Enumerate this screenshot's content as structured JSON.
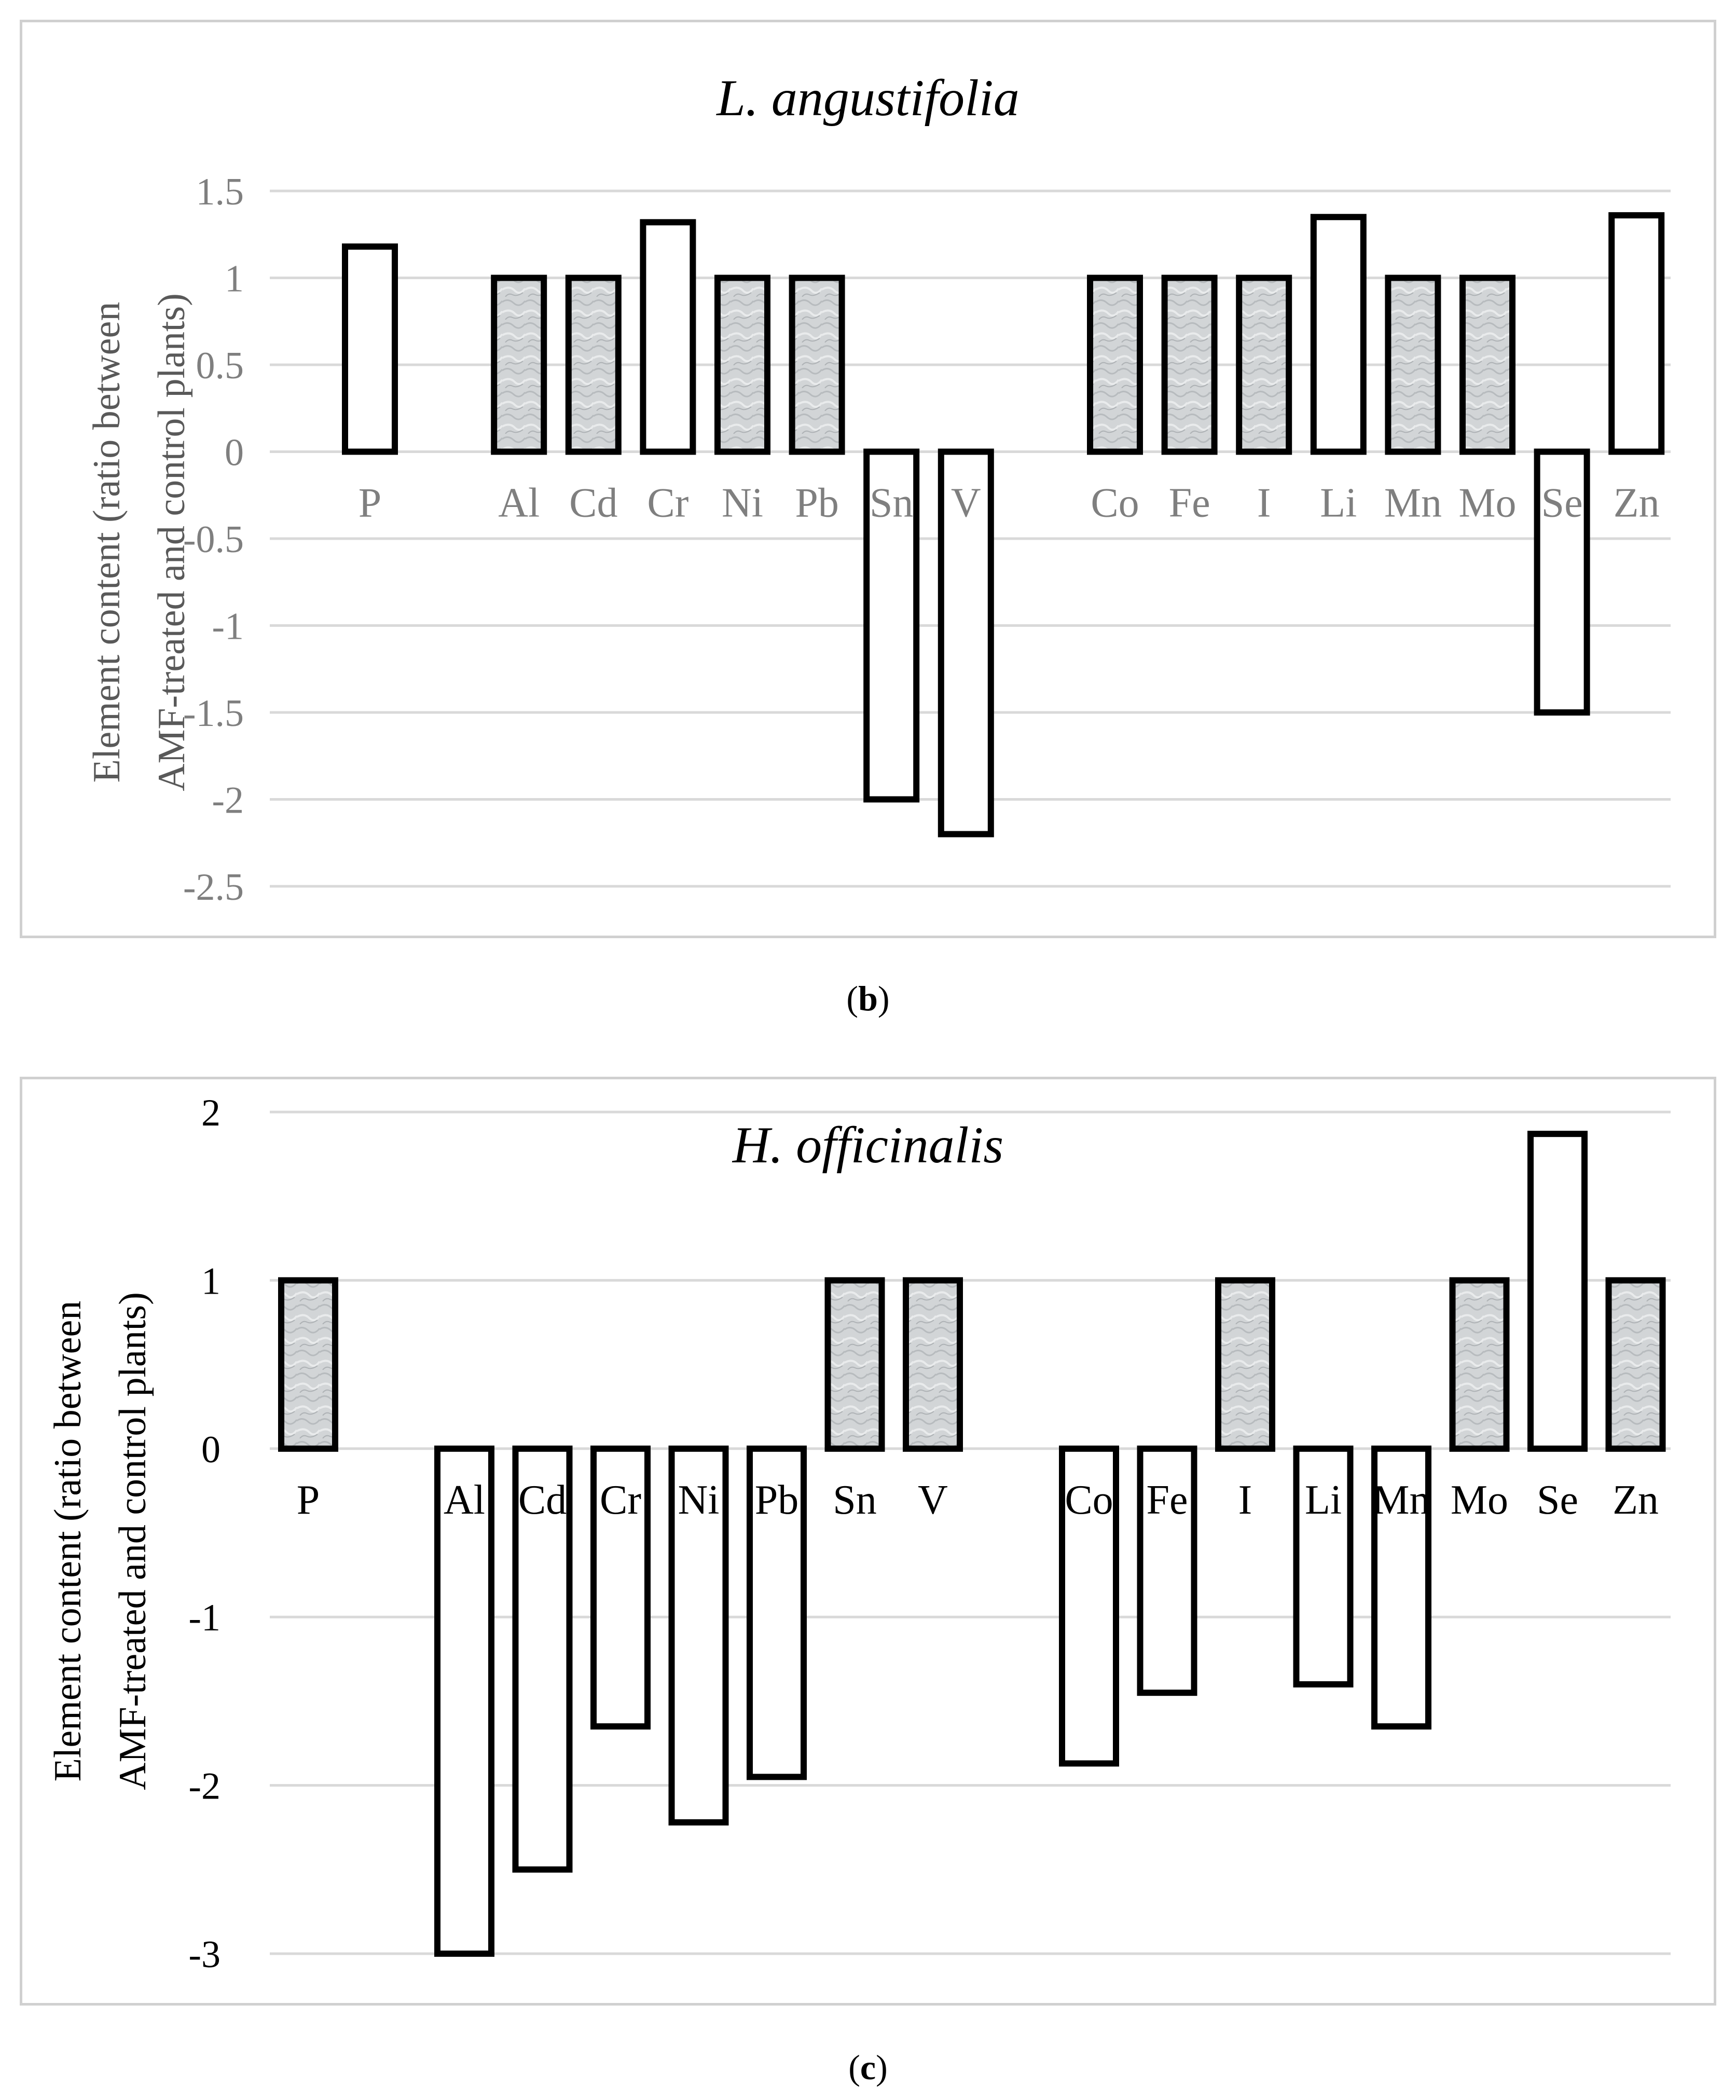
{
  "colors": {
    "gridline": "#d9d9d9",
    "bar_stroke": "#000000",
    "pattern_fill": "#cfd2d4",
    "tick_b": "#7f7f7f",
    "tick_c": "#000000"
  },
  "chart_data": [
    {
      "type": "bar",
      "panel": "b",
      "title": "L. angustifolia",
      "caption_letter": "b",
      "ylabel_line1": "Element content (ratio between",
      "ylabel_line2": "AMF-treated and control plants)",
      "xlabel": "",
      "ylim": [
        -2.5,
        1.5
      ],
      "yticks": [
        1.5,
        1,
        0.5,
        0,
        -0.5,
        -1,
        -1.5,
        -2,
        -2.5
      ],
      "ytick_labels": [
        "1.5",
        "1",
        "0.5",
        "0",
        "-0.5",
        "-1",
        "-1.5",
        "-2",
        "-2.5"
      ],
      "categories": [
        "P",
        "",
        "Al",
        "Cd",
        "Cr",
        "Ni",
        "Pb",
        "Sn",
        "V",
        "",
        "Co",
        "Fe",
        "I",
        "Li",
        "Mn",
        "Mo",
        "Se",
        "Zn"
      ],
      "values": [
        1.18,
        null,
        1,
        1,
        1.32,
        1,
        1,
        -2,
        -2.2,
        null,
        1,
        1,
        1,
        1.35,
        1,
        1,
        -1.5,
        1.36
      ],
      "patterned": [
        false,
        false,
        true,
        true,
        false,
        true,
        true,
        false,
        false,
        false,
        true,
        true,
        true,
        false,
        true,
        true,
        false,
        false
      ]
    },
    {
      "type": "bar",
      "panel": "c",
      "title": "H. officinalis",
      "caption_letter": "c",
      "ylabel_line1": "Element content (ratio between",
      "ylabel_line2": "AMF-treated and control plants)",
      "xlabel": "",
      "ylim": [
        -3,
        2
      ],
      "yticks": [
        2,
        1,
        0,
        -1,
        -2,
        -3
      ],
      "ytick_labels": [
        "2",
        "1",
        "0",
        "-1",
        "-2",
        "-3"
      ],
      "categories": [
        "P",
        "",
        "Al",
        "Cd",
        "Cr",
        "Ni",
        "Pb",
        "Sn",
        "V",
        "",
        "Co",
        "Fe",
        "I",
        "Li",
        "Mn",
        "Mo",
        "Se",
        "Zn"
      ],
      "values": [
        1,
        null,
        -3,
        -2.5,
        -1.65,
        -2.22,
        -1.95,
        1,
        1,
        null,
        -1.87,
        -1.45,
        1,
        -1.4,
        -1.65,
        1,
        1.87,
        1
      ],
      "patterned": [
        true,
        false,
        false,
        false,
        false,
        false,
        false,
        true,
        true,
        false,
        false,
        false,
        true,
        false,
        false,
        true,
        false,
        true
      ]
    }
  ]
}
